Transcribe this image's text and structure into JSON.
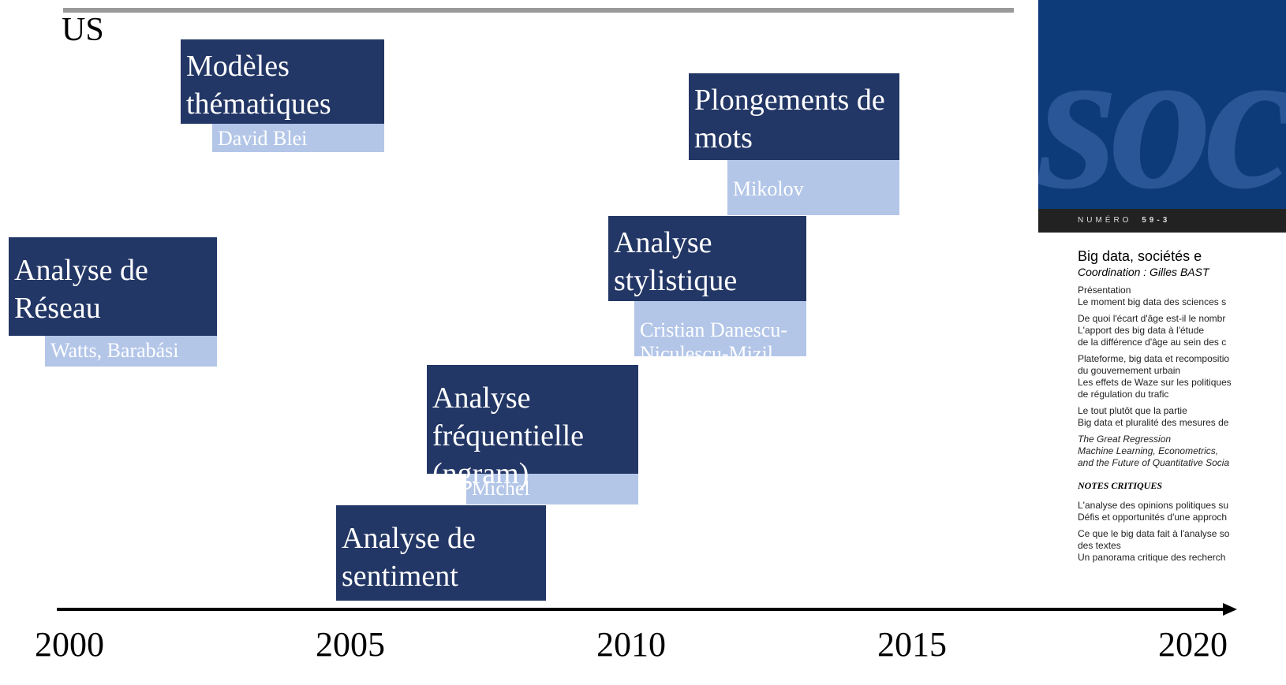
{
  "region": "US",
  "topics": [
    {
      "title": "Modèles thématiques",
      "author": "David Blei"
    },
    {
      "title": "Plongements de mots",
      "author": "Mikolov"
    },
    {
      "title": "Analyse de Réseau",
      "author": "Watts, Barabási"
    },
    {
      "title": "Analyse stylistique",
      "author": "Cristian Danescu-Niculescu-Mizil"
    },
    {
      "title": "Analyse fréquentielle (ngram)",
      "author": "Michel"
    },
    {
      "title": "Analyse de sentiment"
    }
  ],
  "axis": {
    "years": [
      "2000",
      "2005",
      "2010",
      "2015",
      "2020"
    ]
  },
  "cover": {
    "logo": "soc",
    "issue": "NUMÉRO",
    "issue_number": "59-3",
    "title": "Big data, sociétés e",
    "coordination": "Coordination : Gilles BAST",
    "groups": [
      [
        "Présentation",
        "Le moment big data des sciences s"
      ],
      [
        "De quoi l'écart d'âge est-il le nombr",
        "L'apport des big data à l'étude",
        "de la différence d'âge au sein des c"
      ],
      [
        "Plateforme, big data et recompositio",
        "du gouvernement urbain",
        "Les effets de Waze sur les politiques",
        "de régulation du trafic"
      ],
      [
        "Le tout plutôt que la partie",
        "Big data et pluralité des mesures de"
      ],
      [
        "The Great Regression",
        "Machine Learning, Econometrics,",
        "and the Future of Quantitative Socia"
      ]
    ],
    "section": "NOTES CRITIQUES",
    "groups2": [
      [
        "L'analyse des opinions politiques su",
        "Défis et opportunités d'une approch"
      ],
      [
        "Ce que le big data fait à l'analyse so",
        "des textes",
        "Un panorama critique des recherch"
      ]
    ]
  }
}
